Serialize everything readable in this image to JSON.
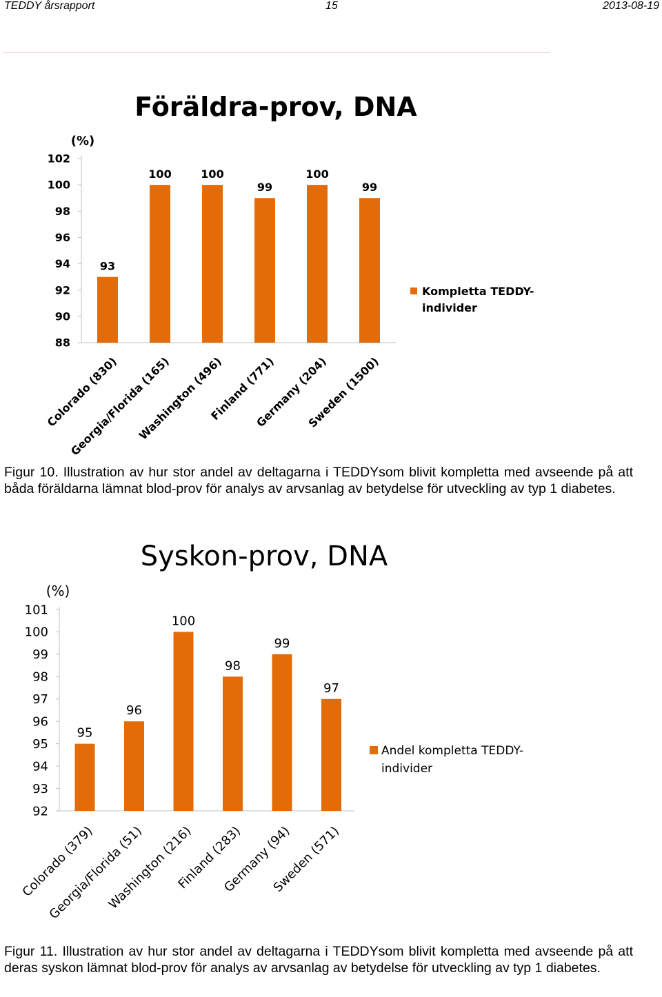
{
  "header": {
    "left": "TEDDY årsrapport",
    "center": "15",
    "right": "2013-08-19"
  },
  "colors": {
    "bar": "#E36C09",
    "axis": "#c0c0c0"
  },
  "chart_data": [
    {
      "type": "bar",
      "title": "Föräldra-prov, DNA",
      "ylabel": "(%)",
      "ylim": [
        88,
        102
      ],
      "yticks": [
        88,
        90,
        92,
        94,
        96,
        98,
        100,
        102
      ],
      "categories": [
        "Colorado (830)",
        "Georgia/Florida (165)",
        "Washington (496)",
        "Finland (771)",
        "Germany (204)",
        "Sweden (1500)"
      ],
      "series": [
        {
          "name": "Kompletta TEDDY-individer",
          "values": [
            93,
            100,
            100,
            99,
            100,
            99
          ]
        }
      ],
      "data_labels": [
        "93",
        "100",
        "100",
        "99",
        "100",
        "99"
      ],
      "legend": "right",
      "legend_lines": [
        "Kompletta TEDDY-",
        "individer"
      ]
    },
    {
      "type": "bar",
      "title": "Syskon-prov, DNA",
      "ylabel": "(%)",
      "ylim": [
        92,
        101
      ],
      "yticks": [
        92,
        93,
        94,
        95,
        96,
        97,
        98,
        99,
        100,
        101
      ],
      "categories": [
        "Colorado (379)",
        "Georgia/Florida (51)",
        "Washington (216)",
        "Finland (283)",
        "Germany (94)",
        "Sweden (571)"
      ],
      "series": [
        {
          "name": "Andel kompletta TEDDY-individer",
          "values": [
            95,
            96,
            100,
            98,
            99,
            97
          ]
        }
      ],
      "data_labels": [
        "95",
        "96",
        "100",
        "98",
        "99",
        "97"
      ],
      "legend": "right",
      "legend_lines": [
        "Andel kompletta TEDDY-",
        "individer"
      ]
    }
  ],
  "captions": [
    "Figur 10. Illustration av hur stor andel av deltagarna i TEDDYsom blivit kompletta med avseende på att båda föräldarna lämnat blod-prov för analys av arvsanlag av betydelse för utveckling av typ 1 diabetes.",
    "Figur 11. Illustration av hur stor andel av deltagarna i TEDDYsom blivit kompletta med avseende på att deras syskon lämnat blod-prov för analys av arvsanlag av betydelse för utveckling av typ 1 diabetes."
  ]
}
